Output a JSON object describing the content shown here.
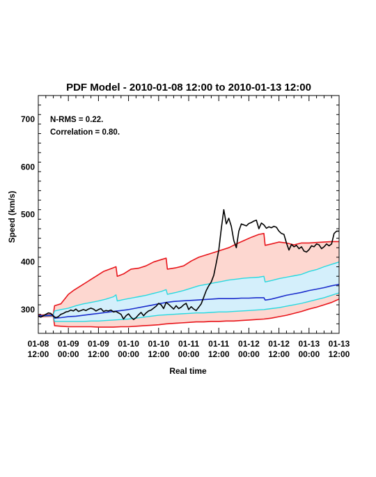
{
  "chart_data": {
    "type": "line",
    "title": "PDF Model - 2010-01-08 12:00 to 2010-01-13 12:00",
    "xlabel": "Real time",
    "ylabel": "Speed (km/s)",
    "xlim": [
      0,
      120
    ],
    "ylim": [
      250,
      750
    ],
    "y_ticks": [
      300,
      400,
      500,
      600,
      700
    ],
    "x_ticks": [
      {
        "x": 0,
        "line1": "01-08",
        "line2": "12:00"
      },
      {
        "x": 12,
        "line1": "01-09",
        "line2": "00:00"
      },
      {
        "x": 24,
        "line1": "01-09",
        "line2": "12:00"
      },
      {
        "x": 36,
        "line1": "01-10",
        "line2": "00:00"
      },
      {
        "x": 48,
        "line1": "01-10",
        "line2": "12:00"
      },
      {
        "x": 60,
        "line1": "01-11",
        "line2": "00:00"
      },
      {
        "x": 72,
        "line1": "01-11",
        "line2": "12:00"
      },
      {
        "x": 84,
        "line1": "01-12",
        "line2": "00:00"
      },
      {
        "x": 96,
        "line1": "01-12",
        "line2": "12:00"
      },
      {
        "x": 108,
        "line1": "01-13",
        "line2": "00:00"
      },
      {
        "x": 120,
        "line1": "01-13",
        "line2": "12:00"
      }
    ],
    "annotations": [
      "N-RMS = 0.22.",
      "Correlation = 0.80."
    ],
    "colors": {
      "outer_band": "#fdd7d0",
      "inner_band": "#d4effb",
      "outer_line": "#e8141a",
      "inner_line": "#26d9e0",
      "median": "#1a2ccc",
      "observed": "#000000"
    },
    "series": [
      {
        "role": "outer-upper",
        "x": [
          0,
          6,
          6.5,
          9,
          12,
          14,
          17,
          20,
          23,
          26,
          29,
          31,
          31.5,
          34,
          37,
          40,
          43,
          46,
          49,
          51,
          51.5,
          55,
          58,
          61,
          64,
          67,
          70,
          73,
          76,
          79,
          82,
          85,
          88,
          90,
          90.5,
          93,
          96,
          99,
          102,
          105,
          108,
          111,
          114,
          117,
          120
        ],
        "y": [
          288,
          290,
          308,
          312,
          332,
          340,
          350,
          360,
          370,
          380,
          386,
          390,
          370,
          375,
          385,
          387,
          392,
          400,
          405,
          408,
          385,
          388,
          392,
          402,
          410,
          415,
          420,
          425,
          430,
          438,
          445,
          452,
          458,
          460,
          435,
          438,
          442,
          440,
          436,
          440,
          440,
          441,
          442,
          443,
          443
        ]
      },
      {
        "role": "inner-upper",
        "x": [
          0,
          6,
          6.5,
          9,
          12,
          15,
          18,
          21,
          24,
          27,
          30,
          31,
          31.5,
          34,
          37,
          40,
          43,
          46,
          49,
          51,
          51.5,
          55,
          58,
          61,
          64,
          67,
          70,
          73,
          76,
          79,
          82,
          85,
          88,
          90,
          90.5,
          93,
          96,
          99,
          102,
          105,
          108,
          111,
          114,
          117,
          120
        ],
        "y": [
          287,
          289,
          297,
          300,
          303,
          308,
          312,
          315,
          318,
          322,
          327,
          331,
          318,
          321,
          324,
          327,
          330,
          334,
          338,
          342,
          332,
          336,
          340,
          345,
          350,
          353,
          356,
          359,
          362,
          364,
          366,
          367,
          368,
          370,
          358,
          361,
          365,
          368,
          371,
          374,
          380,
          384,
          390,
          395,
          400
        ]
      },
      {
        "role": "median",
        "x": [
          0,
          6,
          6.5,
          9,
          12,
          15,
          18,
          21,
          24,
          27,
          30,
          33,
          36,
          39,
          42,
          45,
          48,
          51,
          54,
          57,
          60,
          63,
          66,
          69,
          72,
          75,
          78,
          81,
          84,
          87,
          90,
          90.5,
          93,
          96,
          99,
          102,
          105,
          108,
          111,
          114,
          117,
          120
        ],
        "y": [
          287,
          288,
          282,
          283,
          285,
          286,
          288,
          290,
          292,
          294,
          296,
          298,
          300,
          303,
          306,
          309,
          312,
          315,
          317,
          318,
          319,
          320,
          321,
          322,
          323,
          323,
          323,
          324,
          324,
          325,
          325,
          320,
          322,
          326,
          330,
          333,
          336,
          340,
          343,
          346,
          350,
          353
        ]
      },
      {
        "role": "inner-lower",
        "x": [
          0,
          6,
          6.5,
          9,
          12,
          15,
          18,
          21,
          24,
          27,
          30,
          33,
          36,
          39,
          42,
          45,
          48,
          51,
          54,
          57,
          60,
          63,
          66,
          69,
          72,
          75,
          78,
          81,
          84,
          87,
          90,
          93,
          96,
          99,
          102,
          105,
          108,
          111,
          114,
          117,
          120
        ],
        "y": [
          286,
          287,
          275,
          275,
          275,
          275,
          275,
          276,
          276,
          277,
          278,
          279,
          280,
          282,
          284,
          286,
          288,
          289,
          290,
          291,
          292,
          293,
          293,
          294,
          295,
          295,
          296,
          297,
          298,
          299,
          300,
          302,
          304,
          307,
          310,
          313,
          317,
          321,
          325,
          330,
          335
        ]
      },
      {
        "role": "outer-lower",
        "x": [
          0,
          6,
          6.5,
          9,
          12,
          15,
          18,
          21,
          24,
          27,
          30,
          33,
          36,
          39,
          42,
          45,
          48,
          51,
          54,
          57,
          60,
          63,
          66,
          69,
          72,
          75,
          78,
          81,
          84,
          87,
          90,
          93,
          96,
          99,
          102,
          105,
          108,
          111,
          114,
          117,
          120
        ],
        "y": [
          285,
          286,
          266,
          265,
          264,
          264,
          264,
          264,
          263,
          263,
          263,
          264,
          264,
          265,
          266,
          267,
          268,
          270,
          271,
          272,
          273,
          274,
          274,
          275,
          275,
          276,
          276,
          277,
          278,
          279,
          280,
          282,
          285,
          288,
          292,
          296,
          301,
          305,
          310,
          315,
          322
        ]
      },
      {
        "role": "observed",
        "x": [
          0,
          1,
          2,
          3,
          4,
          5,
          6,
          7,
          8,
          9,
          10,
          11,
          12,
          13,
          14,
          15,
          16,
          17,
          18,
          19,
          20,
          21,
          22,
          23,
          24,
          25,
          26,
          27,
          28,
          29,
          30,
          31,
          32,
          33,
          34,
          35,
          36,
          37,
          38,
          39,
          40,
          41,
          42,
          43,
          44,
          45,
          46,
          47,
          48,
          49,
          50,
          51,
          52,
          53,
          54,
          55,
          56,
          57,
          58,
          59,
          60,
          61,
          62,
          63,
          64,
          65,
          66,
          67,
          68,
          69,
          70,
          71,
          72,
          73,
          74,
          75,
          76,
          77,
          78,
          79,
          80,
          81,
          82,
          83,
          84,
          85,
          86,
          87,
          88,
          89,
          90,
          91,
          92,
          93,
          94,
          95,
          96,
          97,
          98,
          99,
          100,
          101,
          102,
          103,
          104,
          105,
          106,
          107,
          108,
          109,
          110,
          111,
          112,
          113,
          114,
          115,
          116,
          117,
          118,
          119,
          120
        ],
        "y": [
          286,
          284,
          287,
          290,
          293,
          292,
          286,
          283,
          285,
          290,
          292,
          295,
          296,
          299,
          297,
          301,
          296,
          298,
          300,
          298,
          301,
          303,
          301,
          297,
          300,
          302,
          296,
          298,
          297,
          299,
          295,
          296,
          293,
          290,
          280,
          287,
          291,
          284,
          279,
          283,
          289,
          294,
          287,
          293,
          297,
          299,
          303,
          307,
          313,
          310,
          302,
          315,
          311,
          306,
          301,
          308,
          302,
          305,
          310,
          313,
          300,
          306,
          301,
          298,
          305,
          312,
          326,
          340,
          350,
          358,
          372,
          398,
          425,
          470,
          510,
          480,
          492,
          475,
          445,
          430,
          465,
          480,
          478,
          476,
          481,
          483,
          486,
          488,
          470,
          482,
          478,
          471,
          474,
          472,
          475,
          473,
          465,
          460,
          458,
          440,
          425,
          437,
          432,
          435,
          428,
          432,
          423,
          421,
          426,
          434,
          432,
          438,
          436,
          428,
          432,
          438,
          434,
          438,
          460,
          465,
          465
        ]
      }
    ]
  }
}
